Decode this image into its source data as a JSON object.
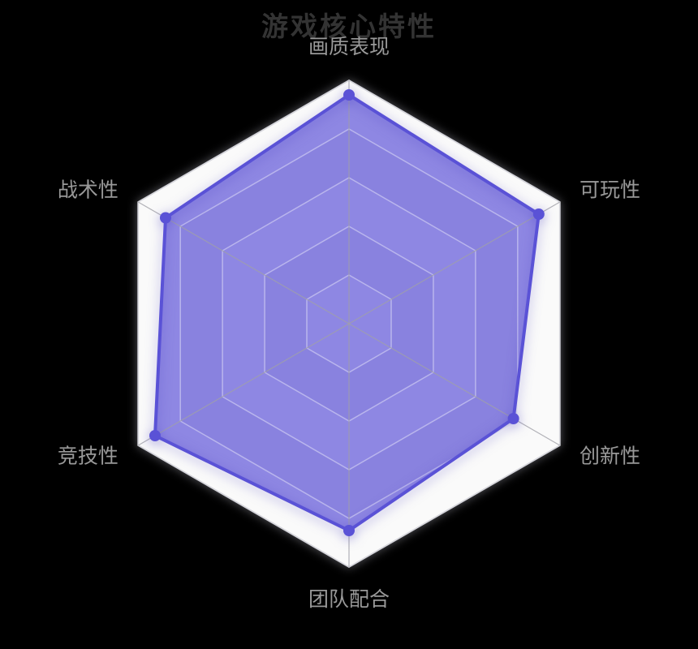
{
  "title": "游戏核心特性",
  "chart_data": {
    "type": "radar",
    "title": "游戏核心特性",
    "indicators": [
      {
        "name": "画质表现",
        "max": 100
      },
      {
        "name": "可玩性",
        "max": 100
      },
      {
        "name": "创新性",
        "max": 100
      },
      {
        "name": "团队配合",
        "max": 100
      },
      {
        "name": "竞技性",
        "max": 100
      },
      {
        "name": "战术性",
        "max": 100
      }
    ],
    "series": [
      {
        "name": "游戏核心特性",
        "values": [
          94,
          90,
          78,
          85,
          92,
          87
        ]
      }
    ],
    "levels": 5,
    "legend_position": "none",
    "grid": "hexagonal",
    "colors": {
      "series_line": "#5a52d6",
      "series_point": "#5a52d6",
      "series_fill": "rgba(95,86,217,0.7)",
      "band_light": "#fafafa",
      "band_dark": "#e9e9ee",
      "outer_border": "#d6d6dc",
      "ring_line": "rgba(255,255,255,0.4)",
      "spoke_line": "rgba(160,160,168,0.8)",
      "title_color": "#333333",
      "label_color": "#999999",
      "background": "#000000"
    }
  }
}
